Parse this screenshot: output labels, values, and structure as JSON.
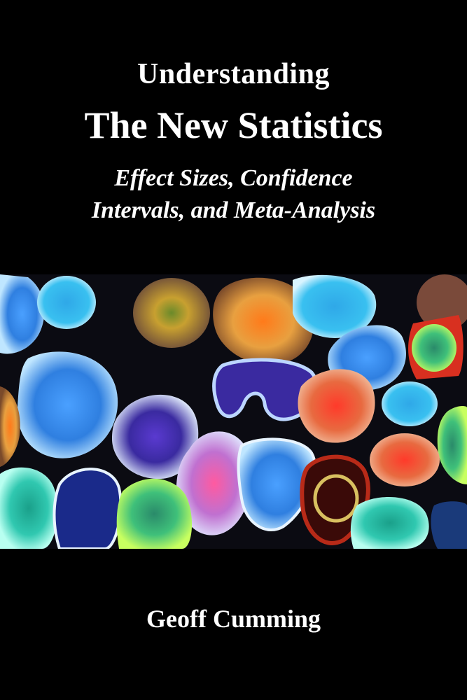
{
  "book": {
    "pre_title": "Understanding",
    "title": "The New Statistics",
    "subtitle_line1": "Effect Sizes, Confidence",
    "subtitle_line2": "Intervals, and Meta-Analysis",
    "author": "Geoff Cumming"
  },
  "colors": {
    "background": "#000000",
    "text": "#ffffff",
    "art_background": "#0b0b12"
  }
}
